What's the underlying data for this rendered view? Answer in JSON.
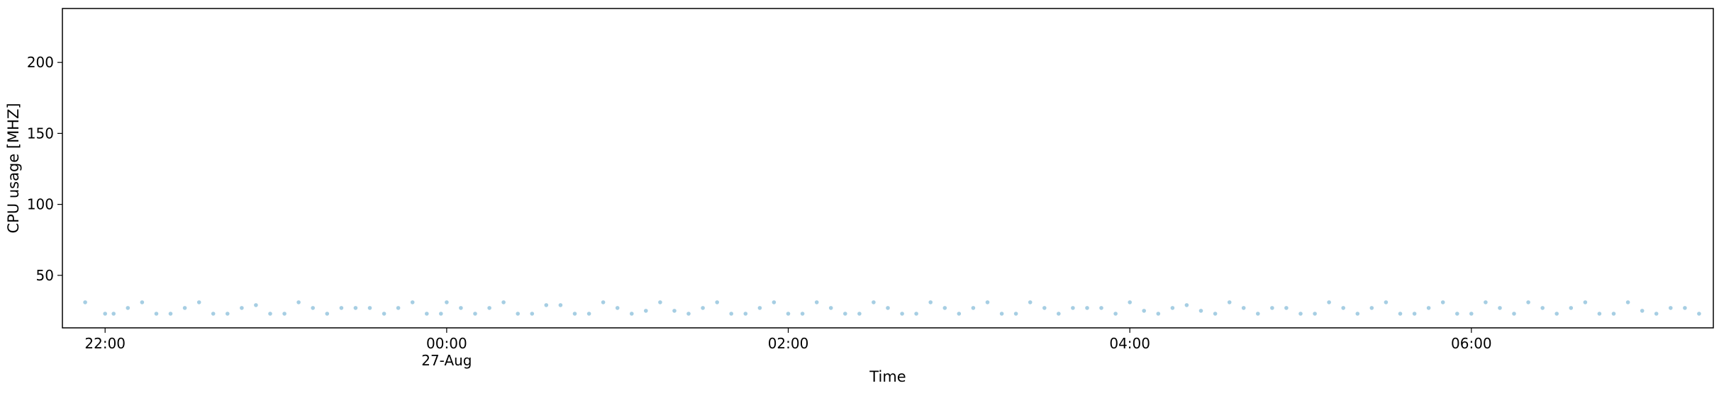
{
  "chart_data": {
    "type": "scatter",
    "title": "",
    "xlabel": "Time",
    "ylabel": "CPU usage [MHZ]",
    "x_axis_type": "time",
    "xlim": [
      "2024-08-26T21:45",
      "2024-08-27T07:25"
    ],
    "ylim": [
      13,
      238
    ],
    "x_ticks": [
      {
        "time": "2024-08-26T22:00",
        "label": "22:00",
        "sublabel": ""
      },
      {
        "time": "2024-08-27T00:00",
        "label": "00:00",
        "sublabel": "27-Aug"
      },
      {
        "time": "2024-08-27T02:00",
        "label": "02:00",
        "sublabel": ""
      },
      {
        "time": "2024-08-27T04:00",
        "label": "04:00",
        "sublabel": ""
      },
      {
        "time": "2024-08-27T06:00",
        "label": "06:00",
        "sublabel": ""
      }
    ],
    "y_ticks": [
      50,
      100,
      150,
      200
    ],
    "grid": false,
    "legend": false,
    "marker_color": "#a6cee3",
    "series": [
      {
        "points": [
          [
            "2024-08-26T21:53",
            31
          ],
          [
            "2024-08-26T22:00",
            23
          ],
          [
            "2024-08-26T22:03",
            23
          ],
          [
            "2024-08-26T22:08",
            27
          ],
          [
            "2024-08-26T22:13",
            31
          ],
          [
            "2024-08-26T22:18",
            23
          ],
          [
            "2024-08-26T22:23",
            23
          ],
          [
            "2024-08-26T22:28",
            27
          ],
          [
            "2024-08-26T22:33",
            31
          ],
          [
            "2024-08-26T22:38",
            23
          ],
          [
            "2024-08-26T22:43",
            23
          ],
          [
            "2024-08-26T22:48",
            27
          ],
          [
            "2024-08-26T22:53",
            29
          ],
          [
            "2024-08-26T22:58",
            23
          ],
          [
            "2024-08-26T23:03",
            23
          ],
          [
            "2024-08-26T23:08",
            31
          ],
          [
            "2024-08-26T23:13",
            27
          ],
          [
            "2024-08-26T23:18",
            23
          ],
          [
            "2024-08-26T23:23",
            27
          ],
          [
            "2024-08-26T23:28",
            27
          ],
          [
            "2024-08-26T23:33",
            27
          ],
          [
            "2024-08-26T23:38",
            23
          ],
          [
            "2024-08-26T23:43",
            27
          ],
          [
            "2024-08-26T23:48",
            31
          ],
          [
            "2024-08-26T23:53",
            23
          ],
          [
            "2024-08-26T23:58",
            23
          ],
          [
            "2024-08-27T00:00",
            31
          ],
          [
            "2024-08-27T00:05",
            27
          ],
          [
            "2024-08-27T00:10",
            23
          ],
          [
            "2024-08-27T00:15",
            27
          ],
          [
            "2024-08-27T00:20",
            31
          ],
          [
            "2024-08-27T00:25",
            23
          ],
          [
            "2024-08-27T00:30",
            23
          ],
          [
            "2024-08-27T00:35",
            29
          ],
          [
            "2024-08-27T00:40",
            29
          ],
          [
            "2024-08-27T00:45",
            23
          ],
          [
            "2024-08-27T00:50",
            23
          ],
          [
            "2024-08-27T00:55",
            31
          ],
          [
            "2024-08-27T01:00",
            27
          ],
          [
            "2024-08-27T01:05",
            23
          ],
          [
            "2024-08-27T01:10",
            25
          ],
          [
            "2024-08-27T01:15",
            31
          ],
          [
            "2024-08-27T01:20",
            25
          ],
          [
            "2024-08-27T01:25",
            23
          ],
          [
            "2024-08-27T01:30",
            27
          ],
          [
            "2024-08-27T01:35",
            31
          ],
          [
            "2024-08-27T01:40",
            23
          ],
          [
            "2024-08-27T01:45",
            23
          ],
          [
            "2024-08-27T01:50",
            27
          ],
          [
            "2024-08-27T01:55",
            31
          ],
          [
            "2024-08-27T02:00",
            23
          ],
          [
            "2024-08-27T02:05",
            23
          ],
          [
            "2024-08-27T02:10",
            31
          ],
          [
            "2024-08-27T02:15",
            27
          ],
          [
            "2024-08-27T02:20",
            23
          ],
          [
            "2024-08-27T02:25",
            23
          ],
          [
            "2024-08-27T02:30",
            31
          ],
          [
            "2024-08-27T02:35",
            27
          ],
          [
            "2024-08-27T02:40",
            23
          ],
          [
            "2024-08-27T02:45",
            23
          ],
          [
            "2024-08-27T02:50",
            31
          ],
          [
            "2024-08-27T02:55",
            27
          ],
          [
            "2024-08-27T03:00",
            23
          ],
          [
            "2024-08-27T03:05",
            27
          ],
          [
            "2024-08-27T03:10",
            31
          ],
          [
            "2024-08-27T03:15",
            23
          ],
          [
            "2024-08-27T03:20",
            23
          ],
          [
            "2024-08-27T03:25",
            31
          ],
          [
            "2024-08-27T03:30",
            27
          ],
          [
            "2024-08-27T03:35",
            23
          ],
          [
            "2024-08-27T03:40",
            27
          ],
          [
            "2024-08-27T03:45",
            27
          ],
          [
            "2024-08-27T03:50",
            27
          ],
          [
            "2024-08-27T03:55",
            23
          ],
          [
            "2024-08-27T04:00",
            31
          ],
          [
            "2024-08-27T04:05",
            25
          ],
          [
            "2024-08-27T04:10",
            23
          ],
          [
            "2024-08-27T04:15",
            27
          ],
          [
            "2024-08-27T04:20",
            29
          ],
          [
            "2024-08-27T04:25",
            25
          ],
          [
            "2024-08-27T04:30",
            23
          ],
          [
            "2024-08-27T04:35",
            31
          ],
          [
            "2024-08-27T04:40",
            27
          ],
          [
            "2024-08-27T04:45",
            23
          ],
          [
            "2024-08-27T04:50",
            27
          ],
          [
            "2024-08-27T04:55",
            27
          ],
          [
            "2024-08-27T05:00",
            23
          ],
          [
            "2024-08-27T05:05",
            23
          ],
          [
            "2024-08-27T05:10",
            31
          ],
          [
            "2024-08-27T05:15",
            27
          ],
          [
            "2024-08-27T05:20",
            23
          ],
          [
            "2024-08-27T05:25",
            27
          ],
          [
            "2024-08-27T05:30",
            31
          ],
          [
            "2024-08-27T05:35",
            23
          ],
          [
            "2024-08-27T05:40",
            23
          ],
          [
            "2024-08-27T05:45",
            27
          ],
          [
            "2024-08-27T05:50",
            31
          ],
          [
            "2024-08-27T05:55",
            23
          ],
          [
            "2024-08-27T06:00",
            23
          ],
          [
            "2024-08-27T06:05",
            31
          ],
          [
            "2024-08-27T06:10",
            27
          ],
          [
            "2024-08-27T06:15",
            23
          ],
          [
            "2024-08-27T06:20",
            31
          ],
          [
            "2024-08-27T06:25",
            27
          ],
          [
            "2024-08-27T06:30",
            23
          ],
          [
            "2024-08-27T06:35",
            27
          ],
          [
            "2024-08-27T06:40",
            31
          ],
          [
            "2024-08-27T06:45",
            23
          ],
          [
            "2024-08-27T06:50",
            23
          ],
          [
            "2024-08-27T06:55",
            31
          ],
          [
            "2024-08-27T07:00",
            25
          ],
          [
            "2024-08-27T07:05",
            23
          ],
          [
            "2024-08-27T07:10",
            27
          ],
          [
            "2024-08-27T07:15",
            27
          ],
          [
            "2024-08-27T07:20",
            23
          ]
        ]
      }
    ]
  }
}
